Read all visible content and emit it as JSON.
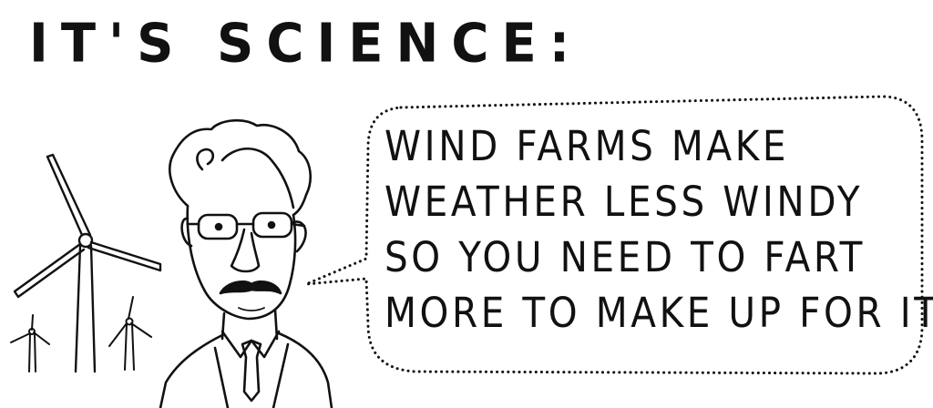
{
  "comic": {
    "title": "IT'S SCIENCE:",
    "speech_bubble": {
      "lines": [
        "WIND FARMS MAKE",
        "WEATHER LESS WINDY",
        "SO YOU NEED TO FART",
        "MORE TO MAKE UP FOR IT!"
      ]
    },
    "colors": {
      "ink": "#111111",
      "paper": "#ffffff"
    },
    "icons": {
      "turbine": "wind-turbine-icon",
      "scientist": "scientist-figure"
    }
  }
}
